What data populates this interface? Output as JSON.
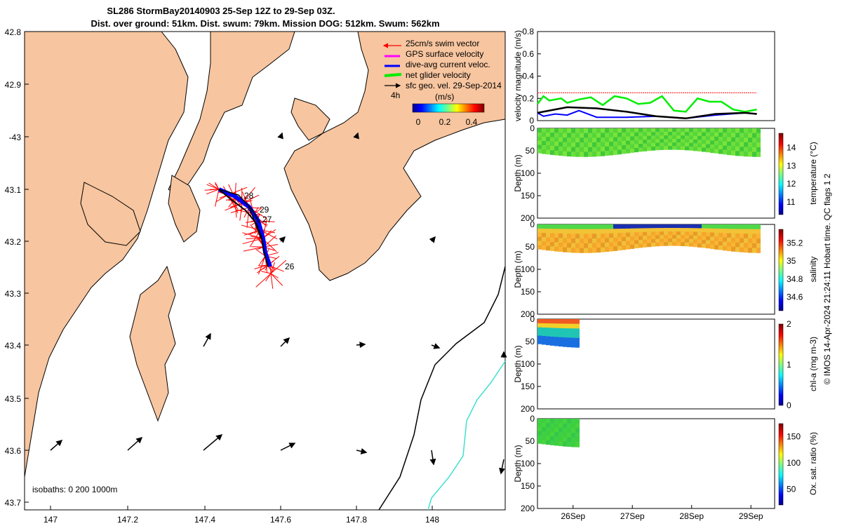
{
  "title_line1": "SL286 StormBay20140903 25-Sep 12Z to 29-Sep 03Z.",
  "title_line2": "Dist. over ground: 51km. Dist. swum: 79km. Mission DOG: 512km. Swum: 562km",
  "credit": "© IMOS 14-Apr-2024 21:24:11 Hobart time. QC flags 1 2",
  "colors": {
    "land": "#f7c59f",
    "swim": "#ff0000",
    "gps": "#ff00ff",
    "dive_avg": "#0000ff",
    "net": "#00ee00",
    "sfc_geo": "#000000",
    "isobath_1000": "#40e0d0"
  },
  "map": {
    "lon_ticks": [
      "147",
      "147.2",
      "147.4",
      "147.6",
      "147.8",
      "148"
    ],
    "lat_ticks": [
      "42.8",
      "42.9",
      "-43",
      "43.1",
      "43.2",
      "43.3",
      "43.4",
      "43.5",
      "43.6",
      "43.7"
    ],
    "isobaths_label": "isobaths: 0   200  1000m",
    "day_labels": [
      "28",
      "29",
      "27",
      "26"
    ],
    "legend": {
      "swim": "25cm/s swim vector",
      "gps": "GPS surface velocity",
      "dive_avg": "dive-avg current veloc.",
      "net": "net glider velocity",
      "sfc_geo": "sfc geo. vel. 29-Sep-2014",
      "four_h": "4h",
      "units": "(m/s)",
      "cbar_ticks": [
        "0",
        "0.2",
        "0.4"
      ]
    }
  },
  "chart_data": [
    {
      "type": "line",
      "title": "",
      "ylabel": "velocity magnitude (m/s)",
      "ylim": [
        0,
        0.8
      ],
      "yticks": [
        "0",
        "0.2",
        "0.4",
        "0.6",
        "0.8"
      ],
      "xlim": [
        25.5,
        29.5
      ],
      "series": [
        {
          "name": "swim 0.25 m/s",
          "x": [
            25.5,
            29.2
          ],
          "values": [
            0.25,
            0.25
          ]
        },
        {
          "name": "net glider velocity",
          "x": [
            25.5,
            25.6,
            25.7,
            25.8,
            25.9,
            26.0,
            26.2,
            26.4,
            26.6,
            26.8,
            27.0,
            27.2,
            27.4,
            27.6,
            27.8,
            28.0,
            28.2,
            28.4,
            28.6,
            28.8,
            29.0,
            29.2
          ],
          "values": [
            0.15,
            0.22,
            0.18,
            0.19,
            0.2,
            0.16,
            0.19,
            0.21,
            0.14,
            0.22,
            0.2,
            0.15,
            0.16,
            0.22,
            0.09,
            0.08,
            0.2,
            0.17,
            0.17,
            0.1,
            0.08,
            0.1
          ]
        },
        {
          "name": "dive-avg current",
          "x": [
            25.5,
            25.6,
            25.8,
            26.0,
            26.2,
            26.5,
            27.0,
            27.5,
            28.0,
            28.5,
            29.0,
            29.2
          ],
          "values": [
            0.07,
            0.04,
            0.06,
            0.05,
            0.09,
            0.03,
            0.03,
            0.04,
            0.02,
            0.05,
            0.07,
            0.06
          ]
        },
        {
          "name": "sfc geo. vel.",
          "x": [
            25.5,
            26.0,
            26.5,
            27.0,
            27.5,
            28.0,
            28.5,
            29.0,
            29.2
          ],
          "values": [
            0.07,
            0.12,
            0.11,
            0.08,
            0.04,
            0.02,
            0.06,
            0.07,
            0.06
          ]
        }
      ]
    },
    {
      "type": "heatmap",
      "ylabel": "Depth (m)",
      "ylim": [
        200,
        0
      ],
      "yticks": [
        "0",
        "50",
        "100",
        "150",
        "200"
      ],
      "cbar_label": "temperature (°C)",
      "cbar_ticks": [
        "11",
        "12",
        "13",
        "14"
      ],
      "cbar_range": [
        10.3,
        14.8
      ],
      "x_range": [
        25.5,
        29.2
      ],
      "max_depth": 65
    },
    {
      "type": "heatmap",
      "ylabel": "Depth (m)",
      "ylim": [
        200,
        0
      ],
      "yticks": [
        "0",
        "50",
        "100",
        "150",
        "200"
      ],
      "cbar_label": "salinity",
      "cbar_ticks": [
        "34.6",
        "34.8",
        "35",
        "35.2"
      ],
      "cbar_range": [
        34.45,
        35.35
      ],
      "x_range": [
        25.5,
        29.2
      ],
      "max_depth": 65
    },
    {
      "type": "heatmap",
      "ylabel": "Depth (m)",
      "ylim": [
        200,
        0
      ],
      "yticks": [
        "0",
        "50",
        "100",
        "150",
        "200"
      ],
      "cbar_label": "chl-a (mg m-3)",
      "cbar_ticks": [
        "0",
        "1",
        "2"
      ],
      "cbar_range": [
        0,
        2
      ],
      "x_range": [
        25.5,
        26.2
      ],
      "max_depth": 65
    },
    {
      "type": "heatmap",
      "ylabel": "Depth (m)",
      "ylim": [
        200,
        0
      ],
      "yticks": [
        "0",
        "50",
        "100",
        "150",
        "200"
      ],
      "cbar_label": "Ox. sat. ratio (%)",
      "cbar_ticks": [
        "50",
        "100",
        "150"
      ],
      "cbar_range": [
        20,
        175
      ],
      "x_range": [
        25.5,
        26.2
      ],
      "max_depth": 65,
      "x_ticks": [
        "26Sep",
        "27Sep",
        "28Sep",
        "29Sep"
      ]
    }
  ]
}
